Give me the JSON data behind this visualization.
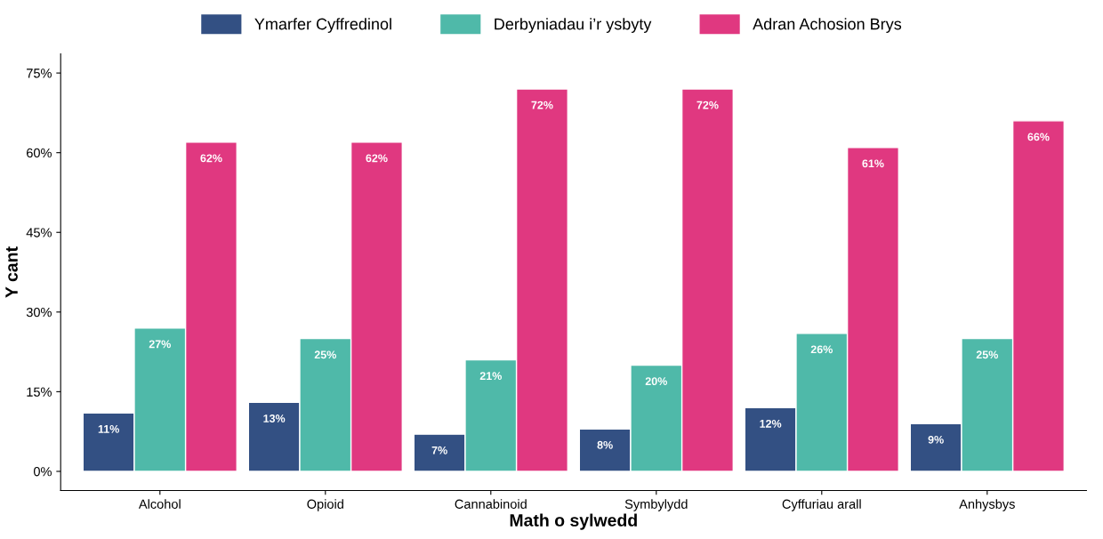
{
  "chart_data": {
    "type": "bar",
    "xlabel": "Math o sylwedd",
    "ylabel": "Y cant",
    "categories": [
      "Alcohol",
      "Opioid",
      "Cannabinoid",
      "Symbylydd",
      "Cyffuriau arall",
      "Anhysbys"
    ],
    "series": [
      {
        "name": "Ymarfer Cyffredinol",
        "color": "#335083",
        "values": [
          11,
          13,
          7,
          8,
          12,
          9
        ],
        "value_labels": [
          "11%",
          "13%",
          "7%",
          "8%",
          "12%",
          "9%"
        ]
      },
      {
        "name": "Derbyniadau i’r ysbyty",
        "color": "#4fb9a9",
        "values": [
          27,
          25,
          21,
          20,
          26,
          25
        ],
        "value_labels": [
          "27%",
          "25%",
          "21%",
          "20%",
          "26%",
          "25%"
        ]
      },
      {
        "name": "Adran Achosion Brys",
        "color": "#e03880",
        "values": [
          62,
          62,
          72,
          72,
          61,
          66
        ],
        "value_labels": [
          "62%",
          "62%",
          "72%",
          "72%",
          "61%",
          "66%"
        ]
      }
    ],
    "ylim": [
      -3.6,
      78.6
    ],
    "yticks": [
      {
        "value": 0,
        "label": "0%"
      },
      {
        "value": 15,
        "label": "15%"
      },
      {
        "value": 30,
        "label": "30%"
      },
      {
        "value": 45,
        "label": "45%"
      },
      {
        "value": 60,
        "label": "60%"
      },
      {
        "value": 75,
        "label": "75%"
      }
    ],
    "legend": "top"
  }
}
